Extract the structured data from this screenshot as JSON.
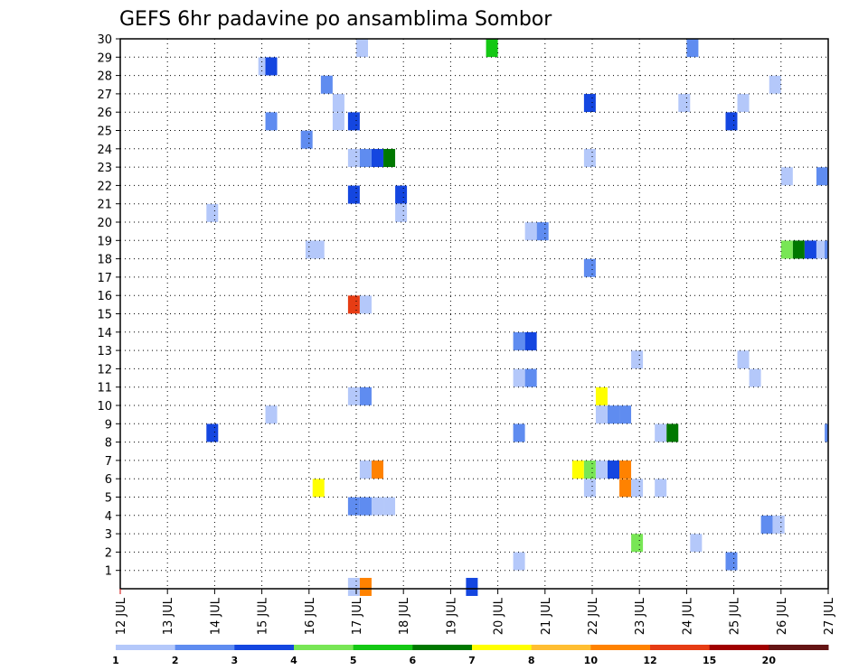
{
  "chart_data": {
    "type": "heatmap",
    "title": "GEFS 6hr padavine po ansamblima Sombor",
    "x_tick_labels": [
      "12 JUL",
      "13 JUL",
      "14 JUL",
      "15 JUL",
      "16 JUL",
      "17 JUL",
      "18 JUL",
      "19 JUL",
      "20 JUL",
      "21 JUL",
      "22 JUL",
      "23 JUL",
      "24 JUL",
      "25 JUL",
      "26 JUL",
      "27 JUL"
    ],
    "y_tick_labels": [
      "1",
      "2",
      "3",
      "4",
      "5",
      "6",
      "7",
      "8",
      "9",
      "10",
      "11",
      "12",
      "13",
      "14",
      "15",
      "16",
      "17",
      "18",
      "19",
      "20",
      "21",
      "22",
      "23",
      "24",
      "25",
      "26",
      "27",
      "28",
      "29",
      "30"
    ],
    "xlim": [
      0,
      60
    ],
    "ylim": [
      0,
      30
    ],
    "grid": true,
    "colorbar": {
      "labels": [
        "1",
        "2",
        "3",
        "4",
        "5",
        "6",
        "7",
        "8",
        "10",
        "12",
        "15",
        "20"
      ],
      "colors": [
        "#b4c8fa",
        "#5f8cf0",
        "#1446e0",
        "#78e655",
        "#14c814",
        "#007800",
        "#ffff00",
        "#ffbe32",
        "#ff8200",
        "#e63c14",
        "#a00000",
        "#641414"
      ]
    },
    "cells": [
      {
        "x": 20.5,
        "y": 30,
        "c": 0
      },
      {
        "x": 31.5,
        "y": 30,
        "c": 4
      },
      {
        "x": 48.5,
        "y": 30,
        "c": 1
      },
      {
        "x": 12.2,
        "y": 29,
        "c": 0
      },
      {
        "x": 12.8,
        "y": 29,
        "c": 2
      },
      {
        "x": 17.5,
        "y": 28,
        "c": 1
      },
      {
        "x": 55.5,
        "y": 28,
        "c": 0
      },
      {
        "x": 18.5,
        "y": 27,
        "c": 0
      },
      {
        "x": 39.8,
        "y": 27,
        "c": 2
      },
      {
        "x": 47.8,
        "y": 27,
        "c": 0
      },
      {
        "x": 52.8,
        "y": 27,
        "c": 0
      },
      {
        "x": 12.8,
        "y": 26,
        "c": 1
      },
      {
        "x": 18.5,
        "y": 26,
        "c": 0
      },
      {
        "x": 19.8,
        "y": 26,
        "c": 2
      },
      {
        "x": 51.8,
        "y": 26,
        "c": 2
      },
      {
        "x": 15.8,
        "y": 25,
        "c": 1
      },
      {
        "x": 19.8,
        "y": 24,
        "c": 0
      },
      {
        "x": 20.8,
        "y": 24,
        "c": 1
      },
      {
        "x": 21.8,
        "y": 24,
        "c": 2
      },
      {
        "x": 22.8,
        "y": 24,
        "c": 5
      },
      {
        "x": 39.8,
        "y": 24,
        "c": 0
      },
      {
        "x": 56.5,
        "y": 23,
        "c": 0
      },
      {
        "x": 59.5,
        "y": 23,
        "c": 1
      },
      {
        "x": 19.8,
        "y": 22,
        "c": 2
      },
      {
        "x": 23.8,
        "y": 22,
        "c": 2
      },
      {
        "x": 7.8,
        "y": 21,
        "c": 0
      },
      {
        "x": 23.8,
        "y": 21,
        "c": 0
      },
      {
        "x": 34.8,
        "y": 20,
        "c": 0
      },
      {
        "x": 35.8,
        "y": 20,
        "c": 1
      },
      {
        "x": 16.2,
        "y": 19,
        "c": 0
      },
      {
        "x": 16.8,
        "y": 19,
        "c": 0
      },
      {
        "x": 56.5,
        "y": 19,
        "c": 3
      },
      {
        "x": 57.5,
        "y": 19,
        "c": 5
      },
      {
        "x": 58.5,
        "y": 19,
        "c": 2
      },
      {
        "x": 59.5,
        "y": 19,
        "c": 0
      },
      {
        "x": 60.2,
        "y": 19,
        "c": 1
      },
      {
        "x": 39.8,
        "y": 18,
        "c": 1
      },
      {
        "x": 19.8,
        "y": 16,
        "c": 9
      },
      {
        "x": 20.8,
        "y": 16,
        "c": 0
      },
      {
        "x": 33.8,
        "y": 14,
        "c": 1
      },
      {
        "x": 34.8,
        "y": 14,
        "c": 2
      },
      {
        "x": 43.8,
        "y": 13,
        "c": 0
      },
      {
        "x": 52.8,
        "y": 13,
        "c": 0
      },
      {
        "x": 33.8,
        "y": 12,
        "c": 0
      },
      {
        "x": 34.8,
        "y": 12,
        "c": 1
      },
      {
        "x": 53.8,
        "y": 12,
        "c": 0
      },
      {
        "x": 19.8,
        "y": 11,
        "c": 0
      },
      {
        "x": 20.8,
        "y": 11,
        "c": 1
      },
      {
        "x": 40.8,
        "y": 11,
        "c": 6
      },
      {
        "x": 12.8,
        "y": 10,
        "c": 0
      },
      {
        "x": 40.8,
        "y": 10,
        "c": 0
      },
      {
        "x": 41.8,
        "y": 10,
        "c": 1
      },
      {
        "x": 42.8,
        "y": 10,
        "c": 1
      },
      {
        "x": 7.8,
        "y": 9,
        "c": 2
      },
      {
        "x": 33.8,
        "y": 9,
        "c": 1
      },
      {
        "x": 45.8,
        "y": 9,
        "c": 0
      },
      {
        "x": 46.8,
        "y": 9,
        "c": 5
      },
      {
        "x": 60.2,
        "y": 9,
        "c": 1
      },
      {
        "x": 20.8,
        "y": 7,
        "c": 0
      },
      {
        "x": 21.8,
        "y": 7,
        "c": 8
      },
      {
        "x": 38.8,
        "y": 7,
        "c": 6
      },
      {
        "x": 39.8,
        "y": 7,
        "c": 3
      },
      {
        "x": 40.8,
        "y": 7,
        "c": 0
      },
      {
        "x": 41.8,
        "y": 7,
        "c": 2
      },
      {
        "x": 42.8,
        "y": 7,
        "c": 8
      },
      {
        "x": 16.8,
        "y": 6,
        "c": 6
      },
      {
        "x": 39.8,
        "y": 6,
        "c": 0
      },
      {
        "x": 42.8,
        "y": 6,
        "c": 8
      },
      {
        "x": 43.8,
        "y": 6,
        "c": 0
      },
      {
        "x": 45.8,
        "y": 6,
        "c": 0
      },
      {
        "x": 19.8,
        "y": 5,
        "c": 1
      },
      {
        "x": 20.8,
        "y": 5,
        "c": 1
      },
      {
        "x": 21.8,
        "y": 5,
        "c": 0
      },
      {
        "x": 22.8,
        "y": 5,
        "c": 0
      },
      {
        "x": 54.8,
        "y": 4,
        "c": 1
      },
      {
        "x": 55.8,
        "y": 4,
        "c": 0
      },
      {
        "x": 43.8,
        "y": 3,
        "c": 3
      },
      {
        "x": 48.8,
        "y": 3,
        "c": 0
      },
      {
        "x": 33.8,
        "y": 2,
        "c": 0
      },
      {
        "x": 51.8,
        "y": 2,
        "c": 1
      },
      {
        "x": 19.8,
        "y": 0.6,
        "c": 0
      },
      {
        "x": 20.8,
        "y": 0.6,
        "c": 8
      },
      {
        "x": 29.8,
        "y": 0.6,
        "c": 2
      }
    ]
  }
}
